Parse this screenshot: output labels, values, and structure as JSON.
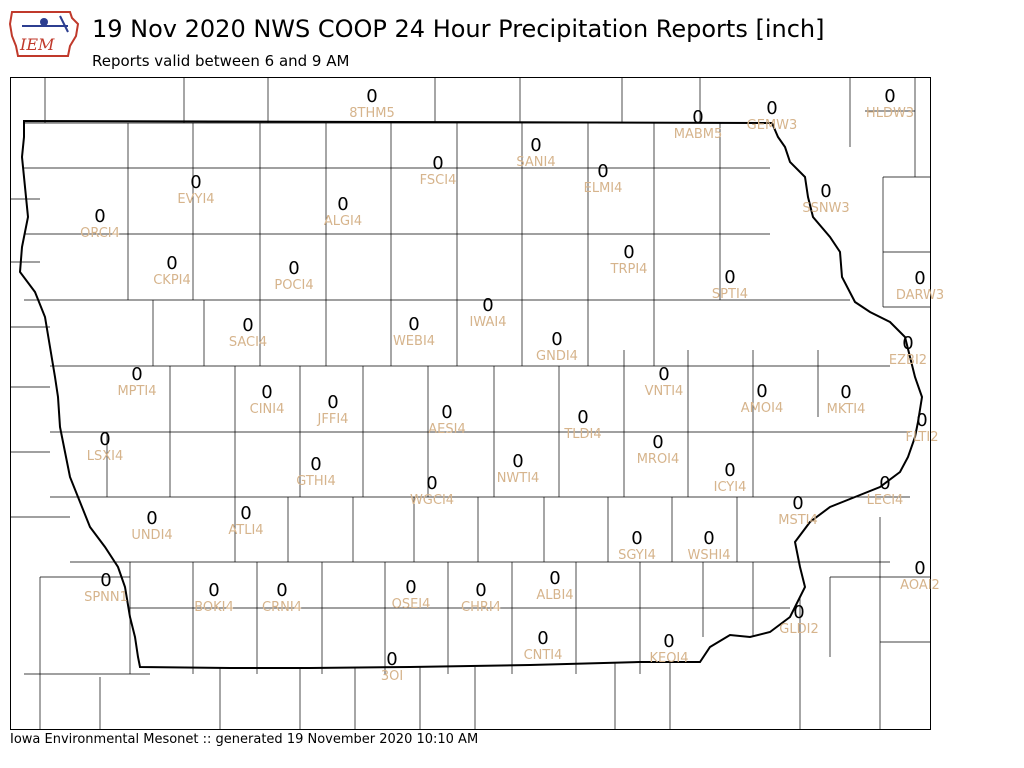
{
  "header": {
    "title": "19 Nov 2020 NWS COOP 24 Hour Precipitation Reports [inch]",
    "subtitle": "Reports valid between 6 and 9 AM",
    "logo_text": "IEM"
  },
  "footer": {
    "text": "Iowa Environmental Mesonet :: generated 19 November 2020 10:10 AM"
  },
  "colors": {
    "value": "#000000",
    "station_id": "#d6b48c",
    "logo_red": "#c0392b",
    "border": "#000000",
    "county_line": "#000000"
  },
  "stations": [
    {
      "id": "8THM5",
      "value": "0"
    },
    {
      "id": "MABM5",
      "value": "0"
    },
    {
      "id": "GEMW3",
      "value": "0"
    },
    {
      "id": "HLDW3",
      "value": "0"
    },
    {
      "id": "SANI4",
      "value": "0"
    },
    {
      "id": "FSCI4",
      "value": "0"
    },
    {
      "id": "ELMI4",
      "value": "0"
    },
    {
      "id": "EVYI4",
      "value": "0"
    },
    {
      "id": "ALGI4",
      "value": "0"
    },
    {
      "id": "SSNW3",
      "value": "0"
    },
    {
      "id": "ORCI4",
      "value": "0"
    },
    {
      "id": "CKPI4",
      "value": "0"
    },
    {
      "id": "POCI4",
      "value": "0"
    },
    {
      "id": "TRPI4",
      "value": "0"
    },
    {
      "id": "SPTI4",
      "value": "0"
    },
    {
      "id": "DARW3",
      "value": "0"
    },
    {
      "id": "WEBI4",
      "value": "0"
    },
    {
      "id": "IWAI4",
      "value": "0"
    },
    {
      "id": "SACI4",
      "value": "0"
    },
    {
      "id": "GNDI4",
      "value": "0"
    },
    {
      "id": "EZBI2",
      "value": "0"
    },
    {
      "id": "MPTI4",
      "value": "0"
    },
    {
      "id": "VNTI4",
      "value": "0"
    },
    {
      "id": "CINI4",
      "value": "0"
    },
    {
      "id": "JFFI4",
      "value": "0"
    },
    {
      "id": "AMOI4",
      "value": "0"
    },
    {
      "id": "MKTI4",
      "value": "0"
    },
    {
      "id": "AESI4",
      "value": "0"
    },
    {
      "id": "TLDI4",
      "value": "0"
    },
    {
      "id": "FLTI2",
      "value": "0"
    },
    {
      "id": "LSXI4",
      "value": "0"
    },
    {
      "id": "MROI4",
      "value": "0"
    },
    {
      "id": "NWTI4",
      "value": "0"
    },
    {
      "id": "GTHI4",
      "value": "0"
    },
    {
      "id": "ICYI4",
      "value": "0"
    },
    {
      "id": "WGCI4",
      "value": "0"
    },
    {
      "id": "LECI4",
      "value": "0"
    },
    {
      "id": "MSTI4",
      "value": "0"
    },
    {
      "id": "ATLI4",
      "value": "0"
    },
    {
      "id": "UNDI4",
      "value": "0"
    },
    {
      "id": "SGYI4",
      "value": "0"
    },
    {
      "id": "WSHI4",
      "value": "0"
    },
    {
      "id": "AOAI2",
      "value": "0"
    },
    {
      "id": "SPNN1",
      "value": "0"
    },
    {
      "id": "BOKI4",
      "value": "0"
    },
    {
      "id": "CRNI4",
      "value": "0"
    },
    {
      "id": "OSEI4",
      "value": "0"
    },
    {
      "id": "CHRI4",
      "value": "0"
    },
    {
      "id": "ALBI4",
      "value": "0"
    },
    {
      "id": "GLDI2",
      "value": "0"
    },
    {
      "id": "CNTI4",
      "value": "0"
    },
    {
      "id": "KEOI4",
      "value": "0"
    },
    {
      "id": "3OI",
      "value": "0"
    }
  ]
}
